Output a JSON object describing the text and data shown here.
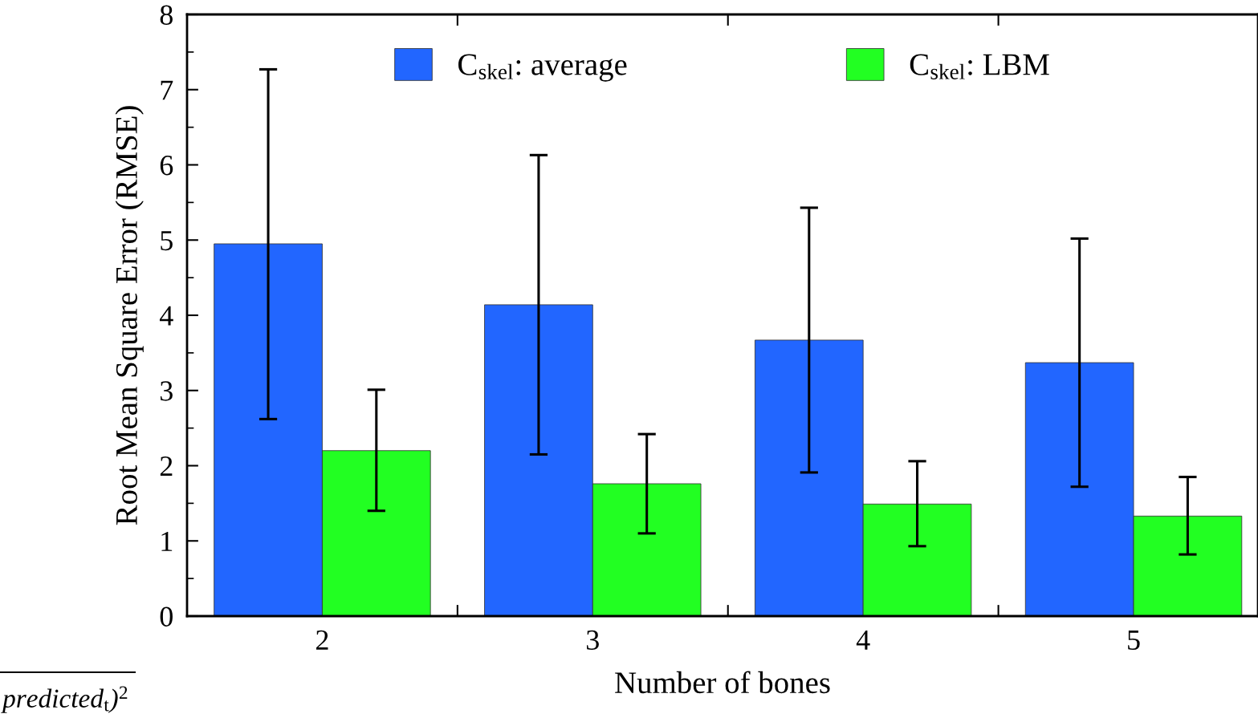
{
  "chart_data": {
    "type": "bar",
    "xlabel": "Number of bones",
    "ylabel": "Root Mean Square Error (RMSE)",
    "categories": [
      "2",
      "3",
      "4",
      "5"
    ],
    "series": [
      {
        "name": "C$_{skel}$: average",
        "color": "#2266ff",
        "values": [
          4.95,
          4.14,
          3.67,
          3.37
        ],
        "errors": [
          [
            2.62,
            7.27
          ],
          [
            2.15,
            6.13
          ],
          [
            1.91,
            5.43
          ],
          [
            1.72,
            5.02
          ]
        ]
      },
      {
        "name": "C$_{skel}$: LBM",
        "color": "#22ff22",
        "values": [
          2.2,
          1.76,
          1.49,
          1.33
        ],
        "errors": [
          [
            1.4,
            3.01
          ],
          [
            1.1,
            2.42
          ],
          [
            0.93,
            2.06
          ],
          [
            0.82,
            1.85
          ]
        ]
      }
    ],
    "ylim": [
      0,
      8
    ],
    "yticks": [
      0,
      1,
      2,
      3,
      4,
      5,
      6,
      7,
      8
    ],
    "grid": false,
    "legend": "top",
    "annotations": [
      "predicted$_{t}$)$^{2}$"
    ]
  }
}
